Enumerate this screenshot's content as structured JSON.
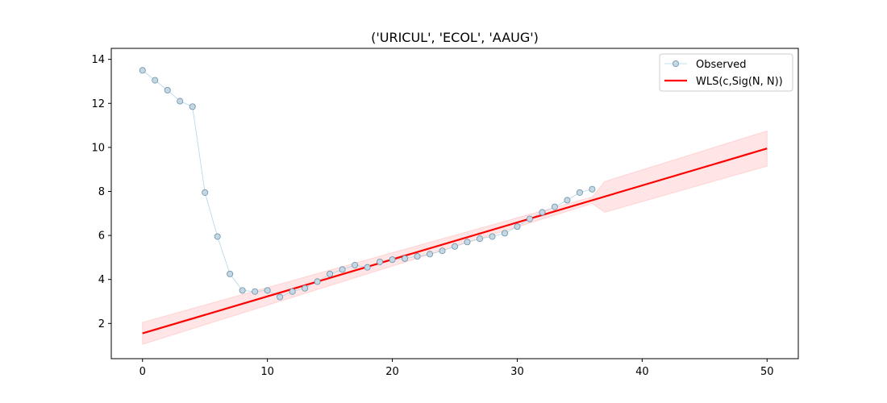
{
  "chart_data": {
    "type": "line",
    "title": "('URICUL', 'ECOL', 'AAUG')",
    "xlabel": "",
    "ylabel": "",
    "xlim": [
      -2.5,
      52.5
    ],
    "ylim": [
      0.4,
      14.5
    ],
    "xticks": [
      0,
      10,
      20,
      30,
      40,
      50
    ],
    "yticks": [
      2,
      4,
      6,
      8,
      10,
      12,
      14
    ],
    "grid": false,
    "legend_position": "top-right",
    "series": [
      {
        "name": "Observed",
        "kind": "line-markers",
        "color": "#add8e6",
        "x": [
          0,
          1,
          2,
          3,
          4,
          5,
          6,
          7,
          8,
          9,
          10,
          11,
          12,
          13,
          14,
          15,
          16,
          17,
          18,
          19,
          20,
          21,
          22,
          23,
          24,
          25,
          26,
          27,
          28,
          29,
          30,
          31,
          32,
          33,
          34,
          35,
          36
        ],
        "y": [
          13.5,
          13.05,
          12.6,
          12.1,
          11.85,
          7.95,
          5.95,
          4.25,
          3.5,
          3.45,
          3.5,
          3.2,
          3.45,
          3.6,
          3.9,
          4.25,
          4.45,
          4.65,
          4.55,
          4.8,
          4.9,
          4.95,
          5.05,
          5.15,
          5.3,
          5.5,
          5.7,
          5.85,
          5.95,
          6.1,
          6.4,
          6.75,
          7.05,
          7.3,
          7.6,
          7.95,
          8.1
        ]
      },
      {
        "name": "WLS(c,Sig(N, N))",
        "kind": "line",
        "color": "#ff0000",
        "x": [
          0,
          50
        ],
        "y": [
          1.55,
          9.95
        ]
      }
    ],
    "band": {
      "color": "#ff0000",
      "x": [
        0,
        36,
        37,
        50
      ],
      "lower": [
        1.05,
        7.45,
        7.05,
        9.15
      ],
      "upper": [
        2.05,
        7.75,
        8.45,
        10.75
      ]
    }
  }
}
